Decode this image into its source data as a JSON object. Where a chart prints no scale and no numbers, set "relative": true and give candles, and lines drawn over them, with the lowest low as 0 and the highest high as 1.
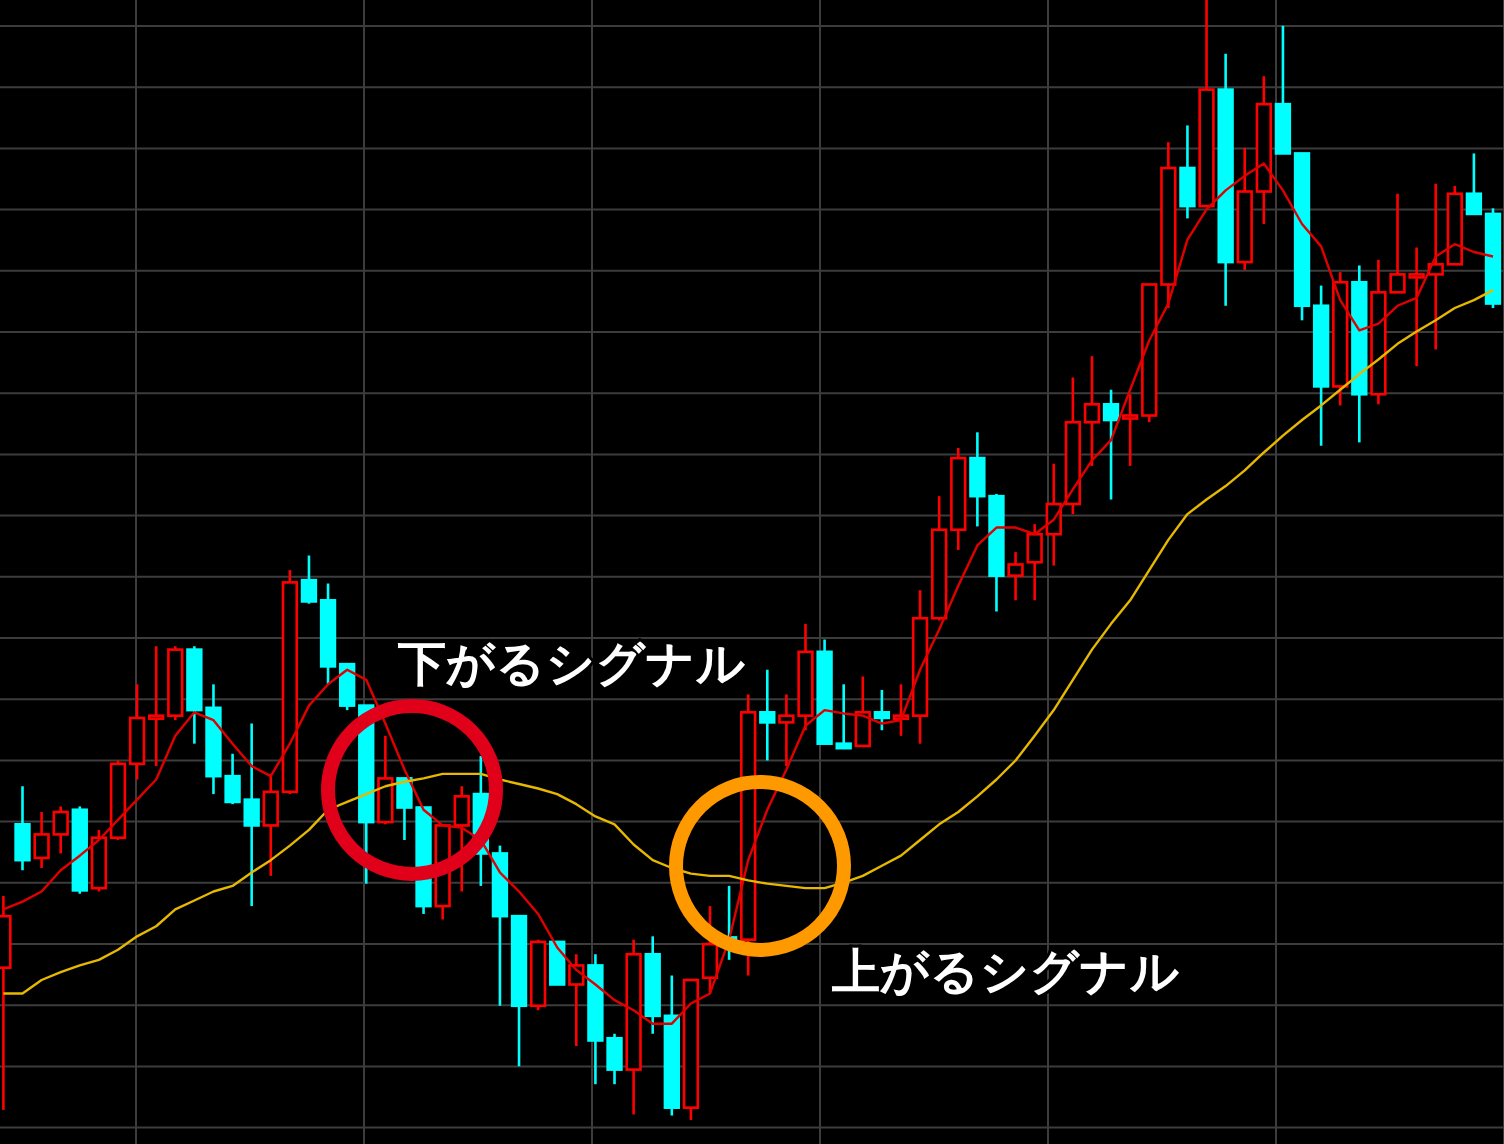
{
  "chart_data": {
    "type": "candlestick",
    "relative": true,
    "grid": true,
    "annotations": [
      "下がるシグナル",
      "上がるシグナル"
    ],
    "categories": [
      null,
      null,
      null,
      null,
      null,
      null,
      null,
      null,
      null,
      null,
      null,
      null,
      null,
      null,
      null,
      null,
      null,
      null,
      null,
      null,
      null,
      null,
      null,
      null,
      null,
      null,
      null,
      null,
      null,
      null,
      null,
      null,
      null,
      null,
      null,
      null,
      null,
      null,
      null,
      null,
      null,
      null,
      null,
      null,
      null,
      null,
      null,
      null,
      null,
      null,
      null,
      null,
      null,
      null,
      null,
      null,
      null,
      null,
      null,
      null,
      null,
      null,
      null,
      null,
      null,
      null,
      null,
      null,
      null,
      null,
      null,
      null,
      null,
      null,
      null,
      null,
      null,
      null,
      null
    ],
    "colors": [
      "#ff0000",
      "#00ffff",
      "#ff0000",
      "#ff0000",
      "#00ffff",
      "#ff0000",
      "#ff0000",
      "#ff0000",
      "#ff0000",
      "#ff0000",
      "#00ffff",
      "#00ffff",
      "#00ffff",
      "#00ffff",
      "#ff0000",
      "#ff0000",
      "#00ffff",
      "#00ffff",
      "#00ffff",
      "#00ffff",
      "#ff0000",
      "#00ffff",
      "#00ffff",
      "#ff0000",
      "#ff0000",
      "#00ffff",
      "#00ffff",
      "#00ffff",
      "#ff0000",
      "#00ffff",
      "#ff0000",
      "#00ffff",
      "#00ffff",
      "#ff0000",
      "#00ffff",
      "#00ffff",
      "#ff0000",
      "#ff0000",
      "#00ffff",
      "#ff0000",
      "#00ffff",
      "#ff0000",
      "#ff0000",
      "#00ffff",
      "#00ffff",
      "#ff0000",
      "#00ffff",
      "#ff0000",
      "#ff0000",
      "#ff0000",
      "#ff0000",
      "#00ffff",
      "#00ffff",
      "#ff0000",
      "#ff0000",
      "#ff0000",
      "#ff0000",
      "#ff0000",
      "#00ffff",
      "#ff0000",
      "#ff0000",
      "#ff0000",
      "#00ffff",
      "#ff0000",
      "#00ffff",
      "#ff0000",
      "#ff0000",
      "#00ffff",
      "#00ffff",
      "#00ffff",
      "#ff0000",
      "#00ffff",
      "#ff0000",
      "#ff0000",
      "#ff0000",
      "#ff0000",
      "#ff0000",
      "#00ffff",
      "#00ffff"
    ],
    "ohlc": [
      [
        0.136,
        0.2,
        0.009,
        0.182
      ],
      [
        0.264,
        0.298,
        0.223,
        0.232
      ],
      [
        0.234,
        0.275,
        0.225,
        0.255
      ],
      [
        0.255,
        0.28,
        0.238,
        0.275
      ],
      [
        0.277,
        0.28,
        0.202,
        0.205
      ],
      [
        0.207,
        0.259,
        0.204,
        0.252
      ],
      [
        0.252,
        0.321,
        0.25,
        0.318
      ],
      [
        0.318,
        0.389,
        0.304,
        0.359
      ],
      [
        0.359,
        0.423,
        0.316,
        0.361
      ],
      [
        0.361,
        0.423,
        0.357,
        0.42
      ],
      [
        0.42,
        0.423,
        0.336,
        0.366
      ],
      [
        0.368,
        0.389,
        0.291,
        0.307
      ],
      [
        0.307,
        0.327,
        0.282,
        0.284
      ],
      [
        0.286,
        0.354,
        0.191,
        0.263
      ],
      [
        0.263,
        0.309,
        0.218,
        0.293
      ],
      [
        0.293,
        0.491,
        0.291,
        0.48
      ],
      [
        0.482,
        0.504,
        0.461,
        0.463
      ],
      [
        0.464,
        0.479,
        0.389,
        0.405
      ],
      [
        0.407,
        0.407,
        0.366,
        0.37
      ],
      [
        0.37,
        0.37,
        0.211,
        0.266
      ],
      [
        0.266,
        0.343,
        0.264,
        0.305
      ],
      [
        0.305,
        0.305,
        0.25,
        0.279
      ],
      [
        0.279,
        0.279,
        0.184,
        0.191
      ],
      [
        0.191,
        0.264,
        0.179,
        0.263
      ],
      [
        0.263,
        0.298,
        0.204,
        0.289
      ],
      [
        0.291,
        0.325,
        0.209,
        0.238
      ],
      [
        0.238,
        0.245,
        0.102,
        0.182
      ],
      [
        0.182,
        0.182,
        0.048,
        0.102
      ],
      [
        0.102,
        0.161,
        0.098,
        0.159
      ],
      [
        0.159,
        0.159,
        0.121,
        0.121
      ],
      [
        0.121,
        0.148,
        0.066,
        0.138
      ],
      [
        0.138,
        0.148,
        0.032,
        0.071
      ],
      [
        0.073,
        0.077,
        0.032,
        0.045
      ],
      [
        0.045,
        0.161,
        0.005,
        0.148
      ],
      [
        0.148,
        0.164,
        0.077,
        0.093
      ],
      [
        0.093,
        0.129,
        0.004,
        0.011
      ],
      [
        0.011,
        0.125,
        0,
        0.125
      ],
      [
        0.127,
        0.191,
        0.113,
        0.157
      ],
      [
        0.163,
        0.209,
        0.143,
        0.157
      ],
      [
        0.161,
        0.38,
        0.129,
        0.364
      ],
      [
        0.364,
        0.402,
        0.321,
        0.355
      ],
      [
        0.355,
        0.38,
        0.316,
        0.361
      ],
      [
        0.361,
        0.443,
        0.348,
        0.418
      ],
      [
        0.418,
        0.429,
        0.336,
        0.336
      ],
      [
        0.336,
        0.389,
        0.332,
        0.332
      ],
      [
        0.334,
        0.396,
        0.334,
        0.364
      ],
      [
        0.364,
        0.384,
        0.348,
        0.359
      ],
      [
        0.359,
        0.389,
        0.343,
        0.361
      ],
      [
        0.361,
        0.473,
        0.336,
        0.448
      ],
      [
        0.448,
        0.557,
        0.446,
        0.527
      ],
      [
        0.527,
        0.6,
        0.509,
        0.591
      ],
      [
        0.591,
        0.614,
        0.53,
        0.557
      ],
      [
        0.557,
        0.559,
        0.454,
        0.486
      ],
      [
        0.486,
        0.507,
        0.464,
        0.496
      ],
      [
        0.498,
        0.532,
        0.464,
        0.523
      ],
      [
        0.523,
        0.586,
        0.495,
        0.55
      ],
      [
        0.55,
        0.663,
        0.541,
        0.623
      ],
      [
        0.623,
        0.682,
        0.584,
        0.639
      ],
      [
        0.639,
        0.652,
        0.554,
        0.625
      ],
      [
        0.627,
        0.648,
        0.584,
        0.629
      ],
      [
        0.629,
        0.746,
        0.623,
        0.746
      ],
      [
        0.746,
        0.873,
        0.725,
        0.85
      ],
      [
        0.85,
        0.888,
        0.805,
        0.816
      ],
      [
        0.816,
        1,
        0.816,
        0.92
      ],
      [
        0.92,
        0.952,
        0.727,
        0.766
      ],
      [
        0.766,
        0.868,
        0.759,
        0.829
      ],
      [
        0.829,
        0.932,
        0.8,
        0.907
      ],
      [
        0.907,
        0.977,
        0.863,
        0.863
      ],
      [
        0.863,
        0.863,
        0.714,
        0.727
      ],
      [
        0.727,
        0.745,
        0.602,
        0.655
      ],
      [
        0.655,
        0.757,
        0.638,
        0.748
      ],
      [
        0.748,
        0.763,
        0.605,
        0.648
      ],
      [
        0.648,
        0.768,
        0.639,
        0.739
      ],
      [
        0.739,
        0.827,
        0.739,
        0.755
      ],
      [
        0.754,
        0.779,
        0.673,
        0.755
      ],
      [
        0.755,
        0.836,
        0.688,
        0.764
      ],
      [
        0.764,
        0.834,
        0.764,
        0.827
      ],
      [
        0.827,
        0.863,
        0.809,
        0.809
      ],
      [
        0.809,
        0.814,
        0.725,
        0.729
      ]
    ],
    "series": [
      {
        "type": "line",
        "color": "#e00000",
        "values": [
          0.188,
          0.195,
          0.204,
          0.223,
          0.236,
          0.25,
          0.268,
          0.286,
          0.304,
          0.343,
          0.364,
          0.357,
          0.336,
          0.316,
          0.307,
          0.336,
          0.37,
          0.389,
          0.402,
          0.393,
          0.354,
          0.313,
          0.277,
          0.263,
          0.261,
          0.25,
          0.221,
          0.204,
          0.184,
          0.154,
          0.134,
          0.121,
          0.107,
          0.098,
          0.086,
          0.086,
          0.104,
          0.113,
          0.161,
          0.232,
          0.277,
          0.313,
          0.352,
          0.366,
          0.363,
          0.361,
          0.354,
          0.357,
          0.402,
          0.438,
          0.477,
          0.513,
          0.529,
          0.529,
          0.523,
          0.536,
          0.563,
          0.589,
          0.607,
          0.652,
          0.696,
          0.729,
          0.786,
          0.813,
          0.83,
          0.843,
          0.854,
          0.83,
          0.8,
          0.78,
          0.732,
          0.705,
          0.711,
          0.727,
          0.734,
          0.771,
          0.782,
          0.775,
          0.771
        ]
      },
      {
        "type": "line",
        "color": "#e6b800",
        "values": [
          0.113,
          0.113,
          0.125,
          0.132,
          0.138,
          0.143,
          0.152,
          0.164,
          0.173,
          0.188,
          0.196,
          0.204,
          0.209,
          0.221,
          0.232,
          0.245,
          0.259,
          0.277,
          0.284,
          0.291,
          0.298,
          0.302,
          0.305,
          0.309,
          0.309,
          0.309,
          0.304,
          0.3,
          0.296,
          0.291,
          0.282,
          0.271,
          0.264,
          0.246,
          0.232,
          0.225,
          0.22,
          0.218,
          0.218,
          0.214,
          0.211,
          0.209,
          0.207,
          0.207,
          0.212,
          0.218,
          0.227,
          0.236,
          0.25,
          0.264,
          0.275,
          0.289,
          0.304,
          0.321,
          0.343,
          0.366,
          0.393,
          0.42,
          0.443,
          0.464,
          0.491,
          0.518,
          0.541,
          0.554,
          0.566,
          0.58,
          0.596,
          0.611,
          0.625,
          0.638,
          0.652,
          0.666,
          0.679,
          0.693,
          0.704,
          0.714,
          0.725,
          0.732,
          0.741
        ]
      }
    ]
  }
}
